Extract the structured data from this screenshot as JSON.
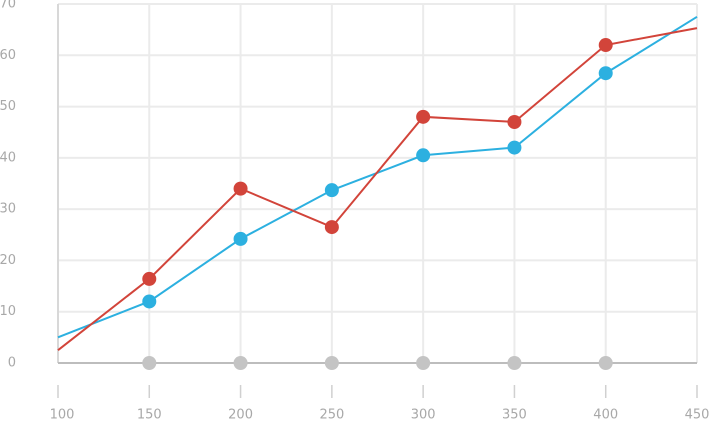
{
  "chart_data": {
    "type": "line",
    "x": [
      100,
      150,
      200,
      250,
      300,
      350,
      400,
      450
    ],
    "series": [
      {
        "color": "#2cb0e0",
        "values": [
          5,
          12,
          24.2,
          33.7,
          40.5,
          42,
          56.5,
          67.5
        ],
        "show_line": true,
        "markers": [
          false,
          true,
          true,
          true,
          true,
          true,
          true,
          false
        ]
      },
      {
        "color": "#d2443a",
        "values": [
          2.5,
          16.4,
          34,
          26.5,
          48,
          47,
          62,
          65.3
        ],
        "show_line": true,
        "markers": [
          false,
          true,
          true,
          true,
          true,
          true,
          true,
          false
        ]
      },
      {
        "color": "#c4c4c4",
        "values": [
          null,
          0,
          0,
          0,
          0,
          0,
          0,
          null
        ],
        "show_line": false,
        "markers": [
          false,
          true,
          true,
          true,
          true,
          true,
          true,
          false
        ]
      }
    ],
    "xlim": [
      100,
      450
    ],
    "xticks": [
      100,
      150,
      200,
      250,
      300,
      350,
      400,
      450
    ],
    "ylim": [
      0,
      70
    ],
    "yticks": [
      0,
      10,
      20,
      30,
      40,
      50,
      60,
      70
    ],
    "grid": true
  }
}
